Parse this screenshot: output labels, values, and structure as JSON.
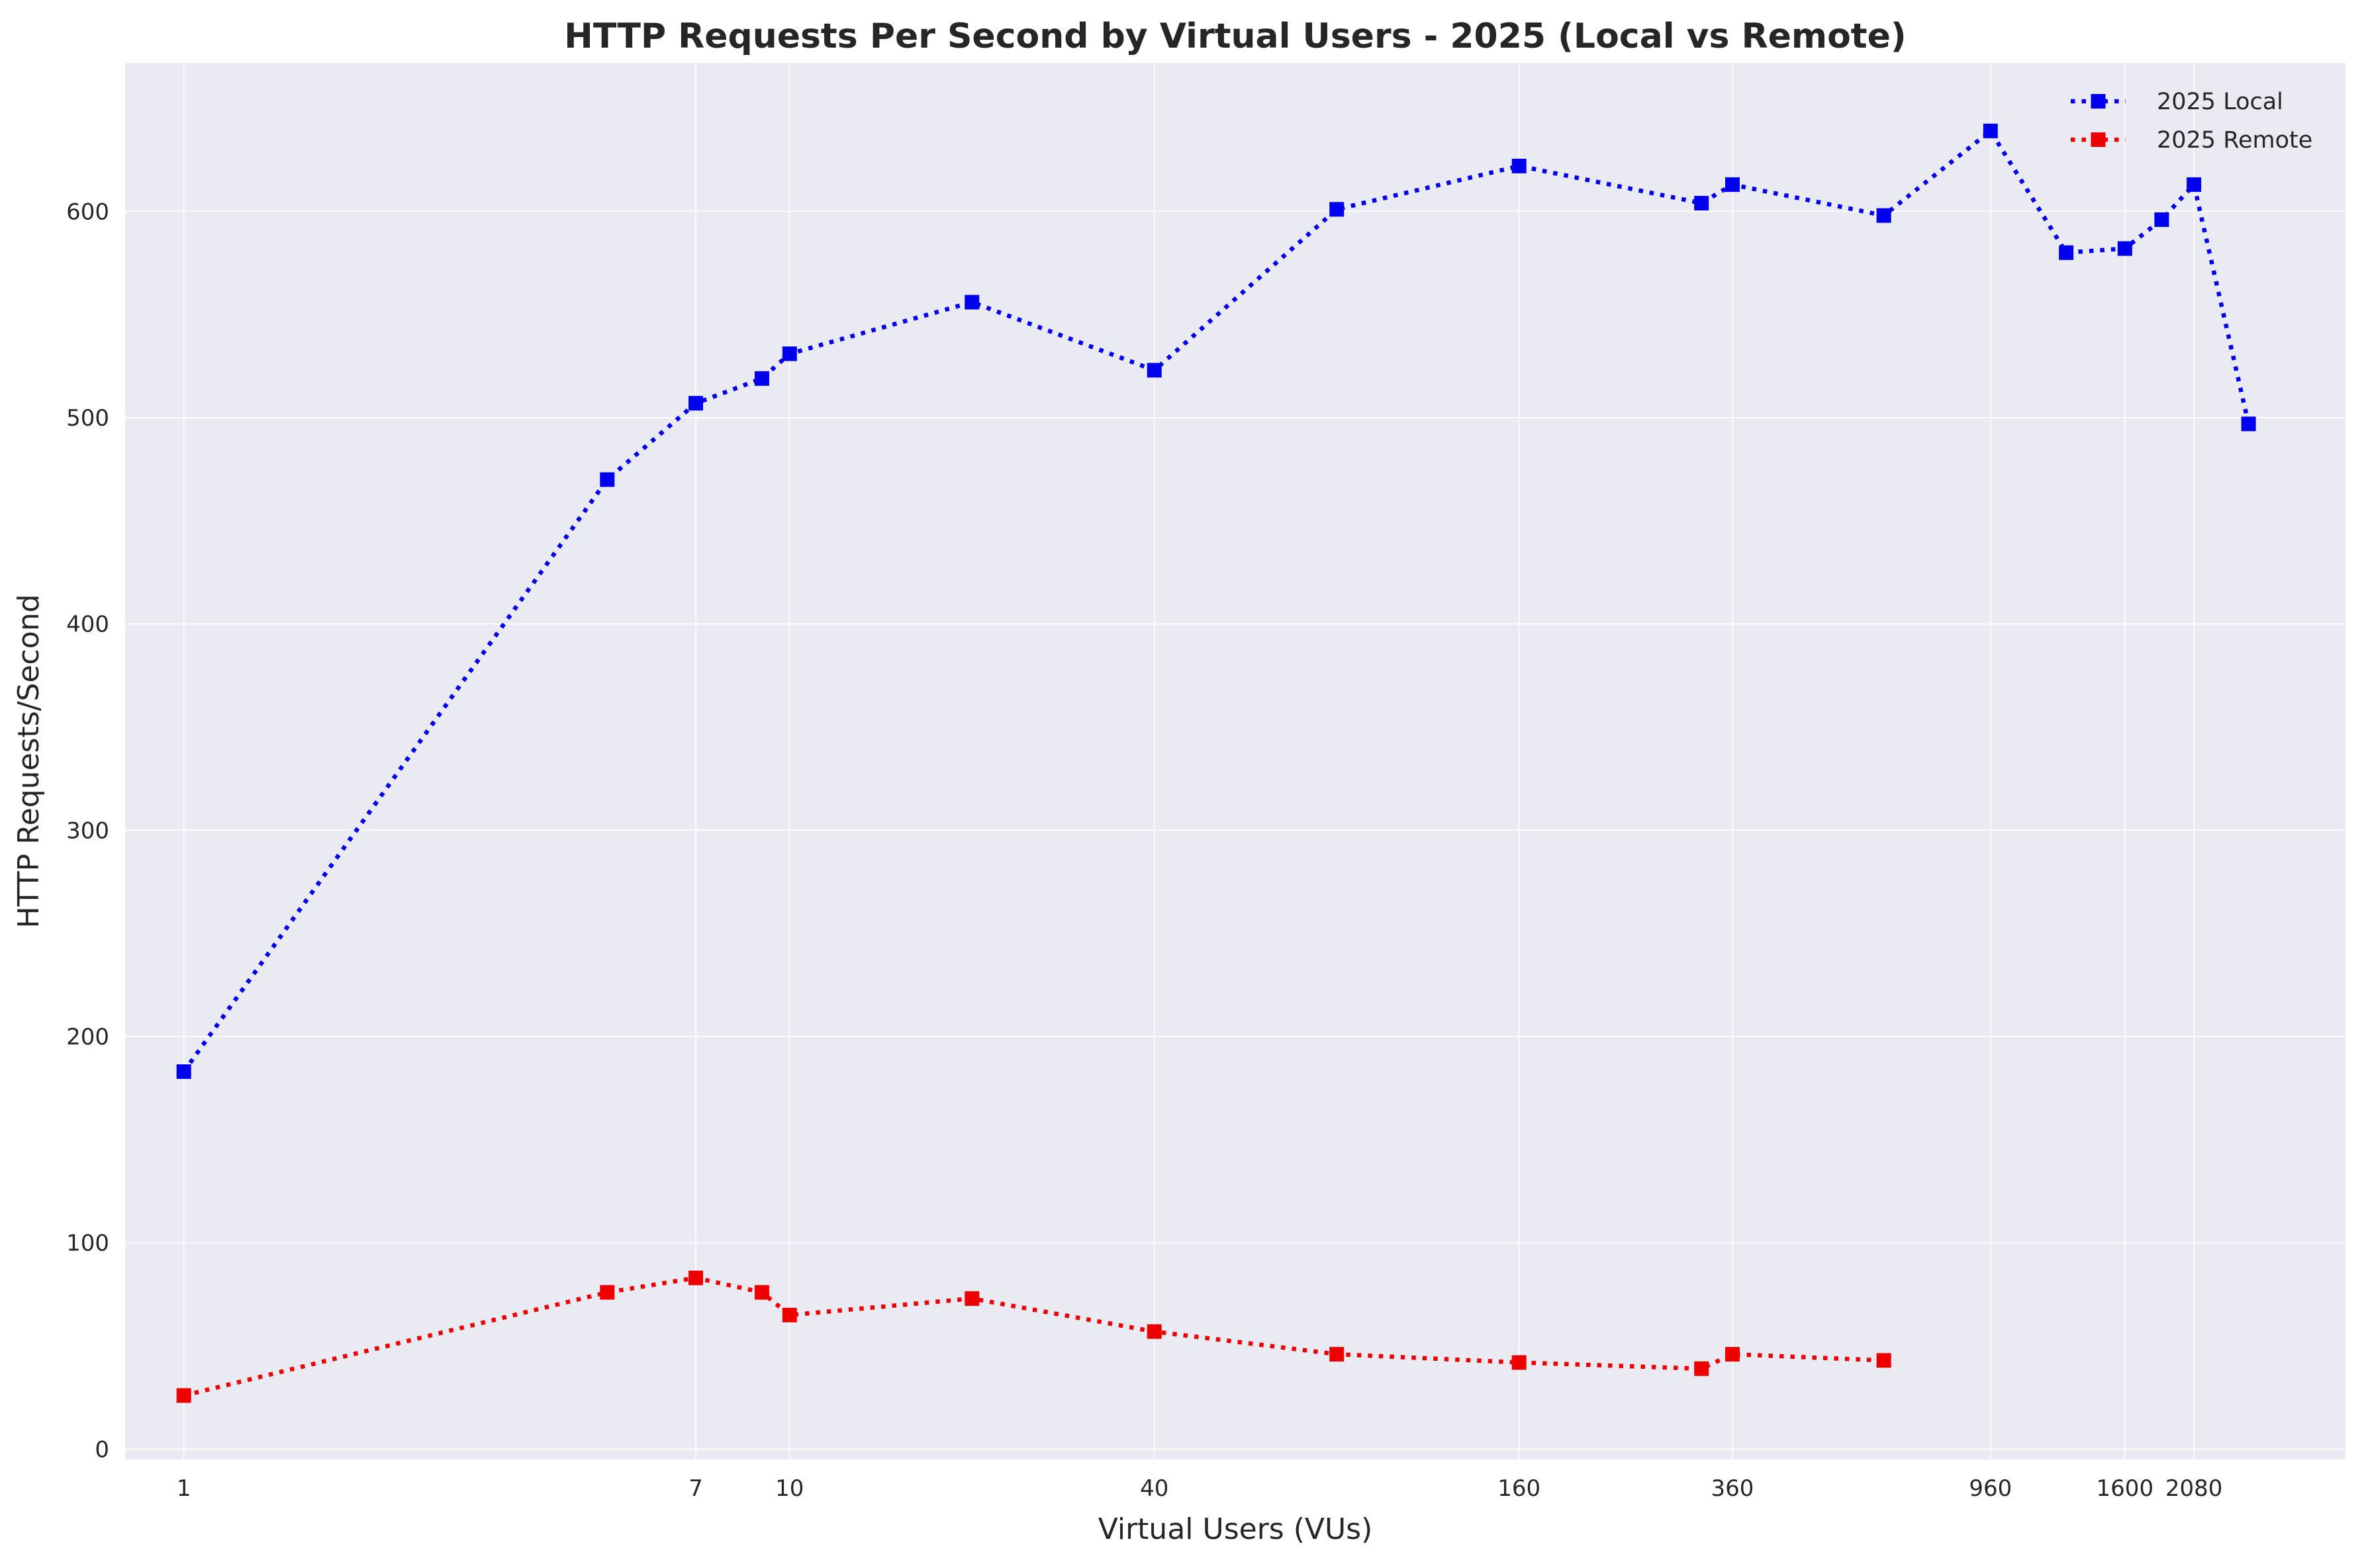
{
  "chart_data": {
    "type": "line",
    "title": "HTTP Requests Per Second by Virtual Users - 2025 (Local vs Remote)",
    "xlabel": "Virtual Users (VUs)",
    "ylabel": "HTTP Requests/Second",
    "x_scale": "log",
    "xlim": [
      0.8,
      3700
    ],
    "ylim": [
      -5,
      672
    ],
    "x_ticks": [
      1,
      7,
      10,
      40,
      160,
      360,
      960,
      1600,
      2080
    ],
    "x_tick_labels": [
      "1",
      "7",
      "10",
      "40",
      "160",
      "360",
      "960",
      "1600",
      "2080"
    ],
    "y_ticks": [
      0,
      100,
      200,
      300,
      400,
      500,
      600
    ],
    "y_tick_labels": [
      "0",
      "100",
      "200",
      "300",
      "400",
      "500",
      "600"
    ],
    "grid": true,
    "legend_position": "top-right",
    "colors": {
      "background": "#eaeaf2",
      "local": "#0000ee",
      "remote": "#ee0000"
    },
    "series": [
      {
        "name": "2025 Local",
        "color": "#0000ee",
        "x": [
          1,
          5,
          7,
          9,
          10,
          20,
          40,
          80,
          160,
          320,
          360,
          640,
          960,
          1280,
          1600,
          1840,
          2080,
          2560
        ],
        "values": [
          183,
          470,
          507,
          519,
          531,
          556,
          523,
          601,
          622,
          604,
          613,
          598,
          639,
          580,
          582,
          596,
          613,
          497
        ]
      },
      {
        "name": "2025 Remote",
        "color": "#ee0000",
        "x": [
          1,
          5,
          7,
          9,
          10,
          20,
          40,
          80,
          160,
          320,
          360,
          640
        ],
        "values": [
          26,
          76,
          83,
          76,
          65,
          73,
          57,
          46,
          42,
          39,
          46,
          43
        ]
      }
    ]
  }
}
